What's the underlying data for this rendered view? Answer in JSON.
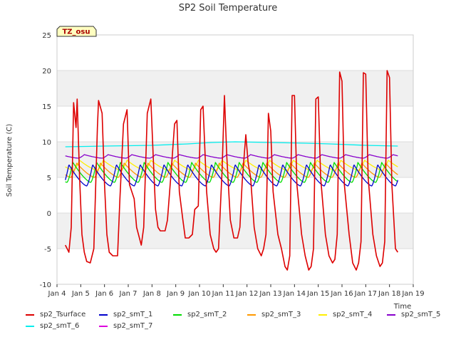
{
  "chart_data": {
    "type": "line",
    "title": "SP2 Soil Temperature",
    "xlabel": "Time",
    "ylabel": "Soil Temperature (C)",
    "ylim": [
      -10,
      25
    ],
    "xlim": [
      4,
      19
    ],
    "yticks": [
      -10,
      -5,
      0,
      5,
      10,
      15,
      20,
      25
    ],
    "xticks": [
      {
        "x": 4,
        "label": "Jan 4"
      },
      {
        "x": 5,
        "label": "Jan 5"
      },
      {
        "x": 6,
        "label": "Jan 6"
      },
      {
        "x": 7,
        "label": "Jan 7"
      },
      {
        "x": 8,
        "label": "Jan 8"
      },
      {
        "x": 9,
        "label": "Jan 9"
      },
      {
        "x": 10,
        "label": "Jan 10"
      },
      {
        "x": 11,
        "label": "Jan 11"
      },
      {
        "x": 12,
        "label": "Jan 12"
      },
      {
        "x": 13,
        "label": "Jan 13"
      },
      {
        "x": 14,
        "label": "Jan 14"
      },
      {
        "x": 15,
        "label": "Jan 15"
      },
      {
        "x": 16,
        "label": "Jan 16"
      },
      {
        "x": 17,
        "label": "Jan 17"
      },
      {
        "x": 18,
        "label": "Jan 18"
      },
      {
        "x": 19,
        "label": "Jan 19"
      }
    ],
    "annotation": "TZ_osu",
    "series": [
      {
        "name": "sp2_Tsurface",
        "color": "#dd0000",
        "x": [
          4.35,
          4.5,
          4.6,
          4.7,
          4.8,
          4.85,
          4.95,
          5.05,
          5.15,
          5.25,
          5.4,
          5.55,
          5.7,
          5.75,
          5.9,
          6.0,
          6.1,
          6.2,
          6.35,
          6.55,
          6.65,
          6.8,
          6.95,
          7.05,
          7.15,
          7.25,
          7.35,
          7.55,
          7.65,
          7.8,
          7.95,
          8.05,
          8.15,
          8.25,
          8.35,
          8.55,
          8.65,
          8.8,
          8.95,
          9.05,
          9.15,
          9.3,
          9.4,
          9.55,
          9.7,
          9.8,
          9.95,
          10.05,
          10.15,
          10.3,
          10.45,
          10.6,
          10.7,
          10.8,
          10.95,
          11.05,
          11.15,
          11.3,
          11.45,
          11.6,
          11.7,
          11.8,
          11.95,
          12.05,
          12.15,
          12.3,
          12.45,
          12.6,
          12.7,
          12.8,
          12.9,
          13.0,
          13.1,
          13.3,
          13.45,
          13.6,
          13.7,
          13.8,
          13.9,
          14.0,
          14.1,
          14.3,
          14.45,
          14.6,
          14.7,
          14.8,
          14.9,
          15.0,
          15.1,
          15.3,
          15.45,
          15.6,
          15.7,
          15.8,
          15.9,
          16.0,
          16.1,
          16.3,
          16.45,
          16.6,
          16.7,
          16.8,
          16.9,
          17.0,
          17.1,
          17.3,
          17.45,
          17.6,
          17.7,
          17.8,
          17.9,
          18.0,
          18.1,
          18.25,
          18.35
        ],
        "y": [
          -4.5,
          -5.5,
          -2,
          15.5,
          12,
          16,
          5,
          -3,
          -5.5,
          -6.8,
          -7,
          -5,
          12,
          15.8,
          14,
          4,
          -3,
          -5.5,
          -6,
          -6,
          2,
          12.5,
          14.5,
          4,
          3,
          2,
          -2,
          -4.5,
          -2,
          14,
          16,
          8,
          0.5,
          -2,
          -2.5,
          -2.5,
          -1,
          5.5,
          12.5,
          13,
          3,
          -1,
          -3.5,
          -3.5,
          -3,
          0.5,
          1,
          14.5,
          15,
          3,
          -3,
          -5,
          -5.5,
          -5,
          6,
          16.5,
          8,
          -1,
          -3.5,
          -3.5,
          -2,
          4.5,
          11,
          7,
          5,
          -2,
          -5,
          -6,
          -5,
          -3,
          14,
          11.5,
          3,
          -3,
          -5,
          -7.5,
          -8,
          -6,
          16.5,
          16.5,
          4,
          -3,
          -6,
          -8,
          -7.5,
          -5,
          16,
          16.3,
          5,
          -3,
          -6,
          -7,
          -6.5,
          -3,
          19.8,
          18.5,
          4,
          -3,
          -7,
          -8,
          -7,
          -4,
          19.7,
          19.5,
          5,
          -3,
          -6,
          -7.5,
          -7,
          -4,
          20,
          19,
          4,
          -5,
          -5.5
        ]
      },
      {
        "name": "sp2_smT_1",
        "color": "#0000cc",
        "kind": "wave",
        "base": 5.8,
        "amp": 3.0,
        "phase": 0.5,
        "min": 3.8,
        "shift": 0.0
      },
      {
        "name": "sp2_smT_2",
        "color": "#00dd00",
        "kind": "wave",
        "base": 6.2,
        "amp": 2.8,
        "phase": 0.52,
        "min": 4.3,
        "shift": 0.15
      },
      {
        "name": "sp2_smT_3",
        "color": "#ff9900",
        "kind": "wave",
        "base": 6.8,
        "amp": 2.0,
        "phase": 0.58,
        "min": 5.0,
        "shift": 0.25
      },
      {
        "name": "sp2_smT_4",
        "color": "#ffee00",
        "kind": "wave",
        "base": 7.3,
        "amp": 1.4,
        "phase": 0.65,
        "min": 6.0,
        "shift": 0.3
      },
      {
        "name": "sp2_smT_5",
        "color": "#8800cc",
        "kind": "wave",
        "base": 8.3,
        "amp": 0.5,
        "phase": 0.8,
        "min": 7.7,
        "shift": 0.35
      },
      {
        "name": "sp2_smT_6",
        "color": "#00eeee",
        "kind": "flat",
        "x": [
          4.35,
          6,
          8,
          9.5,
          10.5,
          11.5,
          13,
          14.5,
          15.5,
          17,
          18.35
        ],
        "y": [
          9.3,
          9.4,
          9.5,
          9.7,
          9.9,
          10.0,
          9.9,
          9.8,
          9.7,
          9.5,
          9.4
        ]
      },
      {
        "name": "sp2_smT_7",
        "color": "#dd00dd",
        "kind": "flat",
        "x": [
          4.35,
          5.5,
          7,
          8.5,
          9.5,
          10.5,
          11.5,
          13,
          14.5,
          15.5,
          17,
          18.35
        ],
        "y": [
          10.3,
          10.4,
          10.3,
          10.3,
          10.4,
          10.5,
          10.6,
          10.6,
          10.6,
          10.5,
          10.4,
          10.3
        ]
      }
    ]
  }
}
